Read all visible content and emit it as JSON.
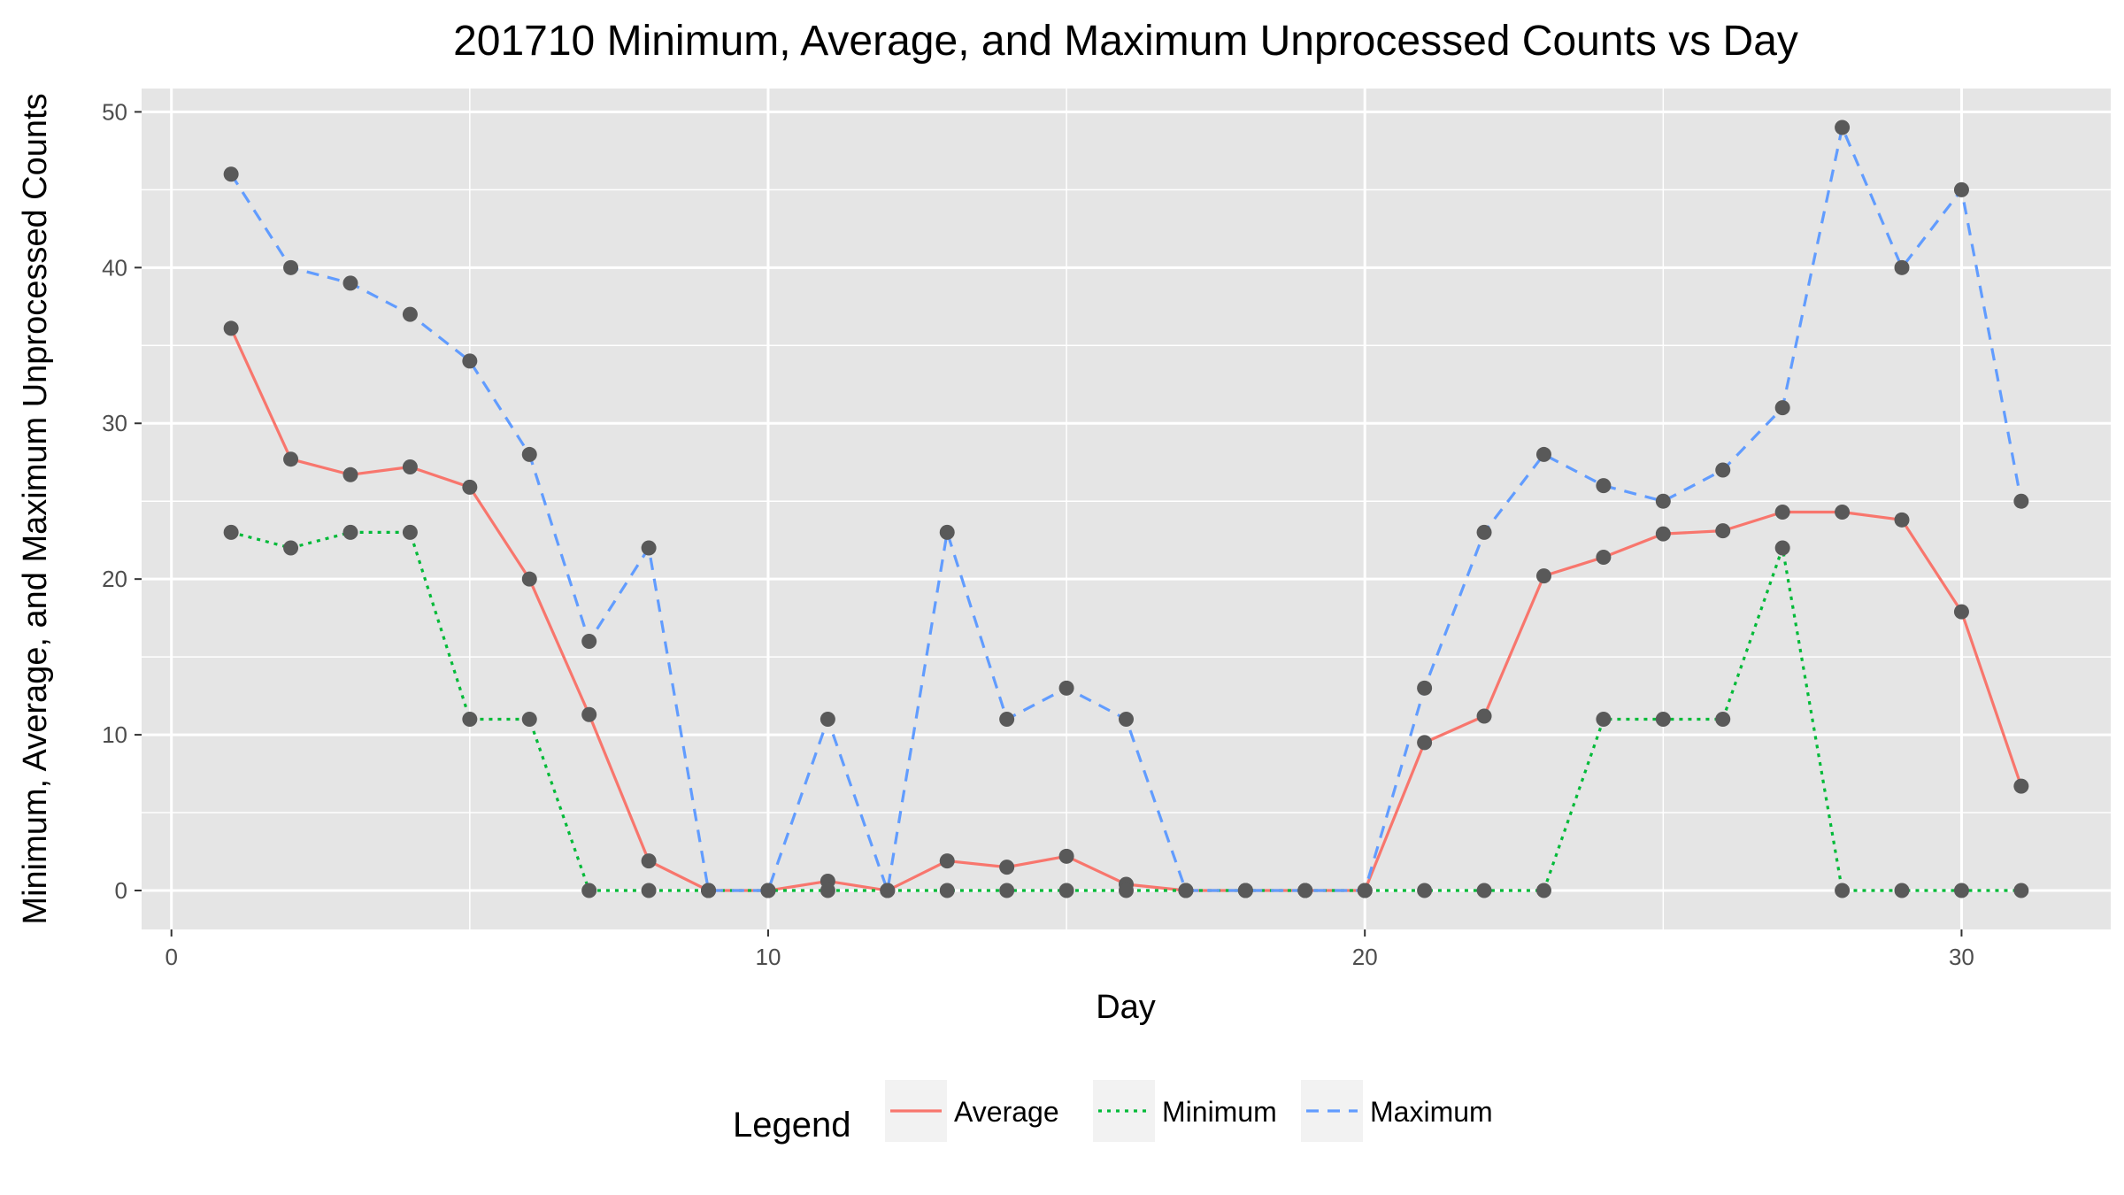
{
  "chart_data": {
    "type": "line",
    "title": "201710 Minimum, Average, and Maximum Unprocessed Counts vs Day",
    "xlabel": "Day",
    "ylabel": "Minimum, Average, and Maximum Unprocessed Counts",
    "xlim": [
      -0.5,
      32.5
    ],
    "ylim": [
      -2.5,
      51.5
    ],
    "x_ticks": [
      0,
      10,
      20,
      30
    ],
    "y_ticks": [
      0,
      10,
      20,
      30,
      40,
      50
    ],
    "grid": true,
    "legend_position": "bottom",
    "legend_title": "Legend",
    "x": [
      1,
      2,
      3,
      4,
      5,
      6,
      7,
      8,
      9,
      10,
      11,
      12,
      13,
      14,
      15,
      16,
      17,
      18,
      19,
      20,
      21,
      22,
      23,
      24,
      25,
      26,
      27,
      28,
      29,
      30,
      31
    ],
    "series": [
      {
        "name": "Average",
        "color": "#F8766D",
        "dash": "solid",
        "values": [
          36.1,
          27.7,
          26.7,
          27.2,
          25.9,
          20.0,
          11.3,
          1.9,
          0,
          0,
          0.6,
          0,
          1.9,
          1.5,
          2.2,
          0.4,
          0,
          0,
          0,
          0,
          9.5,
          11.2,
          20.2,
          21.4,
          22.9,
          23.1,
          24.3,
          24.3,
          23.8,
          17.9,
          6.7
        ]
      },
      {
        "name": "Minimum",
        "color": "#00BA38",
        "dash": "dotted",
        "values": [
          23,
          22,
          23,
          23,
          11,
          11,
          0,
          0,
          0,
          0,
          0,
          0,
          0,
          0,
          0,
          0,
          0,
          0,
          0,
          0,
          0,
          0,
          0,
          11,
          11,
          11,
          22,
          0,
          0,
          0,
          0
        ]
      },
      {
        "name": "Maximum",
        "color": "#619CFF",
        "dash": "dashed",
        "values": [
          46,
          40,
          39,
          37,
          34,
          28,
          16,
          22,
          0,
          0,
          11,
          0,
          23,
          11,
          13,
          11,
          0,
          0,
          0,
          0,
          13,
          23,
          28,
          26,
          25,
          27,
          31,
          49,
          40,
          45,
          25
        ]
      }
    ],
    "point_color": "#595959",
    "panel_background": "#E5E5E5",
    "grid_color": "#FFFFFF"
  }
}
